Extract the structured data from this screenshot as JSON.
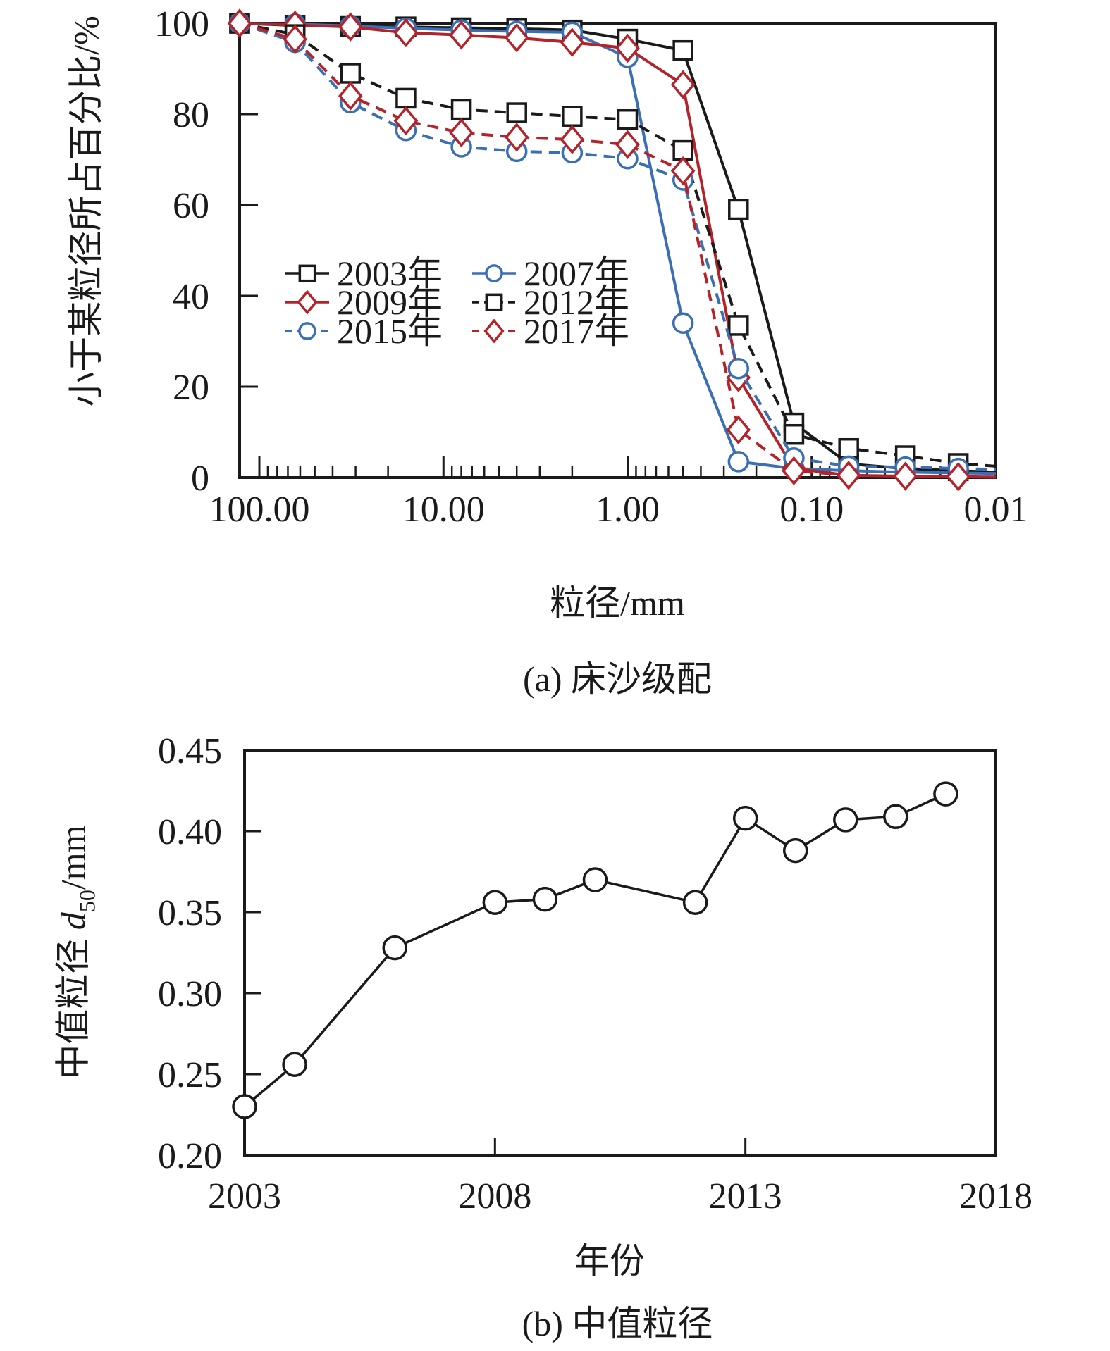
{
  "page": {
    "background": "#ffffff"
  },
  "colors": {
    "black": "#1a1a1a",
    "blue": "#3b6fb5",
    "red": "#b42329"
  },
  "panel_a": {
    "ylabel": "小于某粒径所占百分比/%",
    "xlabel": "粒径/mm",
    "caption": "(a) 床沙级配"
  },
  "panel_b": {
    "ylabel_prefix": "中值粒径 ",
    "ylabel_var": "d",
    "ylabel_sub": "50",
    "ylabel_suffix": "/mm",
    "xlabel": "年份",
    "caption": "(b) 中值粒径"
  },
  "chart_data": [
    {
      "id": "bed-sand-gradation",
      "type": "line",
      "title": "(a) 床沙级配",
      "xlabel": "粒径/mm",
      "ylabel": "小于某粒径所占百分比/%",
      "x_scale": "log-reversed",
      "xlim": [
        128,
        0.01
      ],
      "ylim": [
        0,
        100
      ],
      "x_major_ticks": [
        100,
        10,
        1,
        0.1,
        0.01
      ],
      "x_tick_labels": [
        "100.00",
        "10.00",
        "1.00",
        "0.10",
        "0.01"
      ],
      "y_ticks": [
        0,
        20,
        40,
        60,
        80,
        100
      ],
      "grid": false,
      "legend_position": "inside-center-left",
      "grain_sizes_mm": [
        128,
        64,
        32,
        16,
        8,
        4,
        2,
        1,
        0.5,
        0.25,
        0.125,
        0.063,
        0.031,
        0.016
      ],
      "series": [
        {
          "name": "2003年",
          "color": "#1a1a1a",
          "dash": "solid",
          "marker": "square",
          "values": [
            100,
            99.5,
            99.3,
            99.2,
            99,
            98.8,
            98.5,
            96.5,
            94,
            59,
            12,
            3,
            2,
            1.5
          ],
          "tail": 1.2
        },
        {
          "name": "2007年",
          "color": "#3b6fb5",
          "dash": "solid",
          "marker": "circle",
          "values": [
            100,
            99.8,
            99.4,
            98.9,
            98.5,
            98.2,
            98,
            92.5,
            34,
            3.5,
            2,
            1.5,
            1.2,
            1
          ],
          "tail": 0.9
        },
        {
          "name": "2009年",
          "color": "#b42329",
          "dash": "solid",
          "marker": "diamond",
          "values": [
            100,
            99.6,
            99.2,
            97.9,
            97.4,
            96.8,
            95.8,
            94.5,
            86.5,
            22,
            2,
            0.5,
            0.3,
            0.2
          ],
          "tail": 0.1
        },
        {
          "name": "2012年",
          "color": "#1a1a1a",
          "dash": "dashed",
          "marker": "square",
          "values": [
            100,
            97.5,
            89,
            83.5,
            81,
            80.3,
            79.5,
            78.8,
            72,
            33.5,
            9.5,
            6.4,
            4.8,
            3.1
          ],
          "tail": 2.5
        },
        {
          "name": "2015年",
          "color": "#3b6fb5",
          "dash": "dashed",
          "marker": "circle",
          "values": [
            100,
            95.8,
            82.5,
            76.4,
            72.8,
            71.8,
            71.5,
            70.2,
            65.5,
            24,
            4.3,
            2.5,
            2.3,
            2
          ],
          "tail": 1.8
        },
        {
          "name": "2017年",
          "color": "#b42329",
          "dash": "dashed",
          "marker": "diamond",
          "values": [
            100,
            96.5,
            84,
            78.5,
            75.9,
            74.9,
            74.4,
            73.3,
            67.5,
            10.5,
            1.5,
            0.5,
            0.3,
            0.2
          ],
          "tail": 0.1
        }
      ]
    },
    {
      "id": "median-grain-size",
      "type": "line",
      "title": "(b) 中值粒径",
      "xlabel": "年份",
      "ylabel": "中值粒径 d50/mm",
      "xlim": [
        2003,
        2018
      ],
      "ylim": [
        0.2,
        0.45
      ],
      "x_ticks": [
        2003,
        2008,
        2013,
        2018
      ],
      "y_ticks": [
        0.2,
        0.25,
        0.3,
        0.35,
        0.4,
        0.45
      ],
      "grid": false,
      "series_color": "#1a1a1a",
      "marker": "circle",
      "years": [
        2003,
        2004,
        2006,
        2008,
        2009,
        2010,
        2012,
        2013,
        2014,
        2015,
        2016,
        2017
      ],
      "values": [
        0.23,
        0.256,
        0.328,
        0.356,
        0.358,
        0.37,
        0.356,
        0.408,
        0.388,
        0.407,
        0.409,
        0.423
      ]
    }
  ]
}
